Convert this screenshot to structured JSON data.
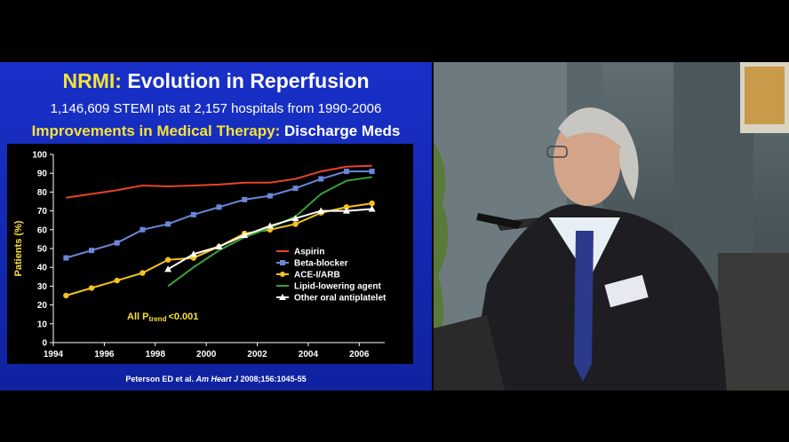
{
  "slide": {
    "title_prefix": "NRMI:",
    "title_main": "Evolution in Reperfusion",
    "subtitle": "1,146,609 STEMI pts at 2,157 hospitals from 1990-2006",
    "section_prefix": "Improvements in Medical Therapy:",
    "section_main": "Discharge Meds",
    "citation_authors": "Peterson ED et al.",
    "citation_journal": "Am Heart J",
    "citation_ref": "2008;156:1045-55",
    "ptrend_prefix": "All P",
    "ptrend_sub": "trend",
    "ptrend_suffix": "<0.001"
  },
  "chart_data": {
    "type": "line",
    "xlabel": "",
    "ylabel": "Patients (%)",
    "xlim": [
      1994,
      2007
    ],
    "ylim": [
      0,
      100
    ],
    "xticks": [
      1994,
      1996,
      1998,
      2000,
      2002,
      2004,
      2006
    ],
    "yticks": [
      0,
      10,
      20,
      30,
      40,
      50,
      60,
      70,
      80,
      90,
      100
    ],
    "legend_position": "bottom-right",
    "series": [
      {
        "name": "Aspirin",
        "color": "#e8432a",
        "marker": "none",
        "x": [
          1994.5,
          1995.5,
          1996.5,
          1997.5,
          1998.5,
          1999.5,
          2000.5,
          2001.5,
          2002.5,
          2003.5,
          2004.5,
          2005.5,
          2006.5
        ],
        "y": [
          77,
          79,
          81,
          83.5,
          83,
          83.5,
          84,
          85,
          85,
          87,
          91,
          93.5,
          94
        ]
      },
      {
        "name": "Beta-blocker",
        "color": "#6a86d8",
        "marker": "square",
        "x": [
          1994.5,
          1995.5,
          1996.5,
          1997.5,
          1998.5,
          1999.5,
          2000.5,
          2001.5,
          2002.5,
          2003.5,
          2004.5,
          2005.5,
          2006.5
        ],
        "y": [
          45,
          49,
          53,
          60,
          63,
          68,
          72,
          76,
          78,
          82,
          87,
          91,
          91
        ]
      },
      {
        "name": "ACE-I/ARB",
        "color": "#f5c21c",
        "marker": "circle",
        "x": [
          1994.5,
          1995.5,
          1996.5,
          1997.5,
          1998.5,
          1999.5,
          2000.5,
          2001.5,
          2002.5,
          2003.5,
          2004.5,
          2005.5,
          2006.5
        ],
        "y": [
          25,
          29,
          33,
          37,
          44,
          45,
          51,
          58,
          60,
          63,
          69,
          72,
          74
        ]
      },
      {
        "name": "Lipid-lowering agent",
        "color": "#3aa33a",
        "marker": "none",
        "x": [
          1998.5,
          1999.5,
          2000.5,
          2001.5,
          2002.5,
          2003.5,
          2004.5,
          2005.5,
          2006.5
        ],
        "y": [
          30,
          40,
          49,
          56,
          61,
          67,
          79,
          86,
          88
        ]
      },
      {
        "name": "Other oral antiplatelet",
        "color": "#ffffff",
        "marker": "triangle",
        "x": [
          1998.5,
          1999.5,
          2000.5,
          2001.5,
          2002.5,
          2003.5,
          2004.5,
          2005.5,
          2006.5
        ],
        "y": [
          39,
          47,
          51,
          57,
          62,
          66,
          70,
          70,
          71
        ]
      }
    ]
  },
  "colors": {
    "slide_bg": "#1530c0",
    "title_highlight": "#f5e23a",
    "chart_bg": "#000000"
  }
}
